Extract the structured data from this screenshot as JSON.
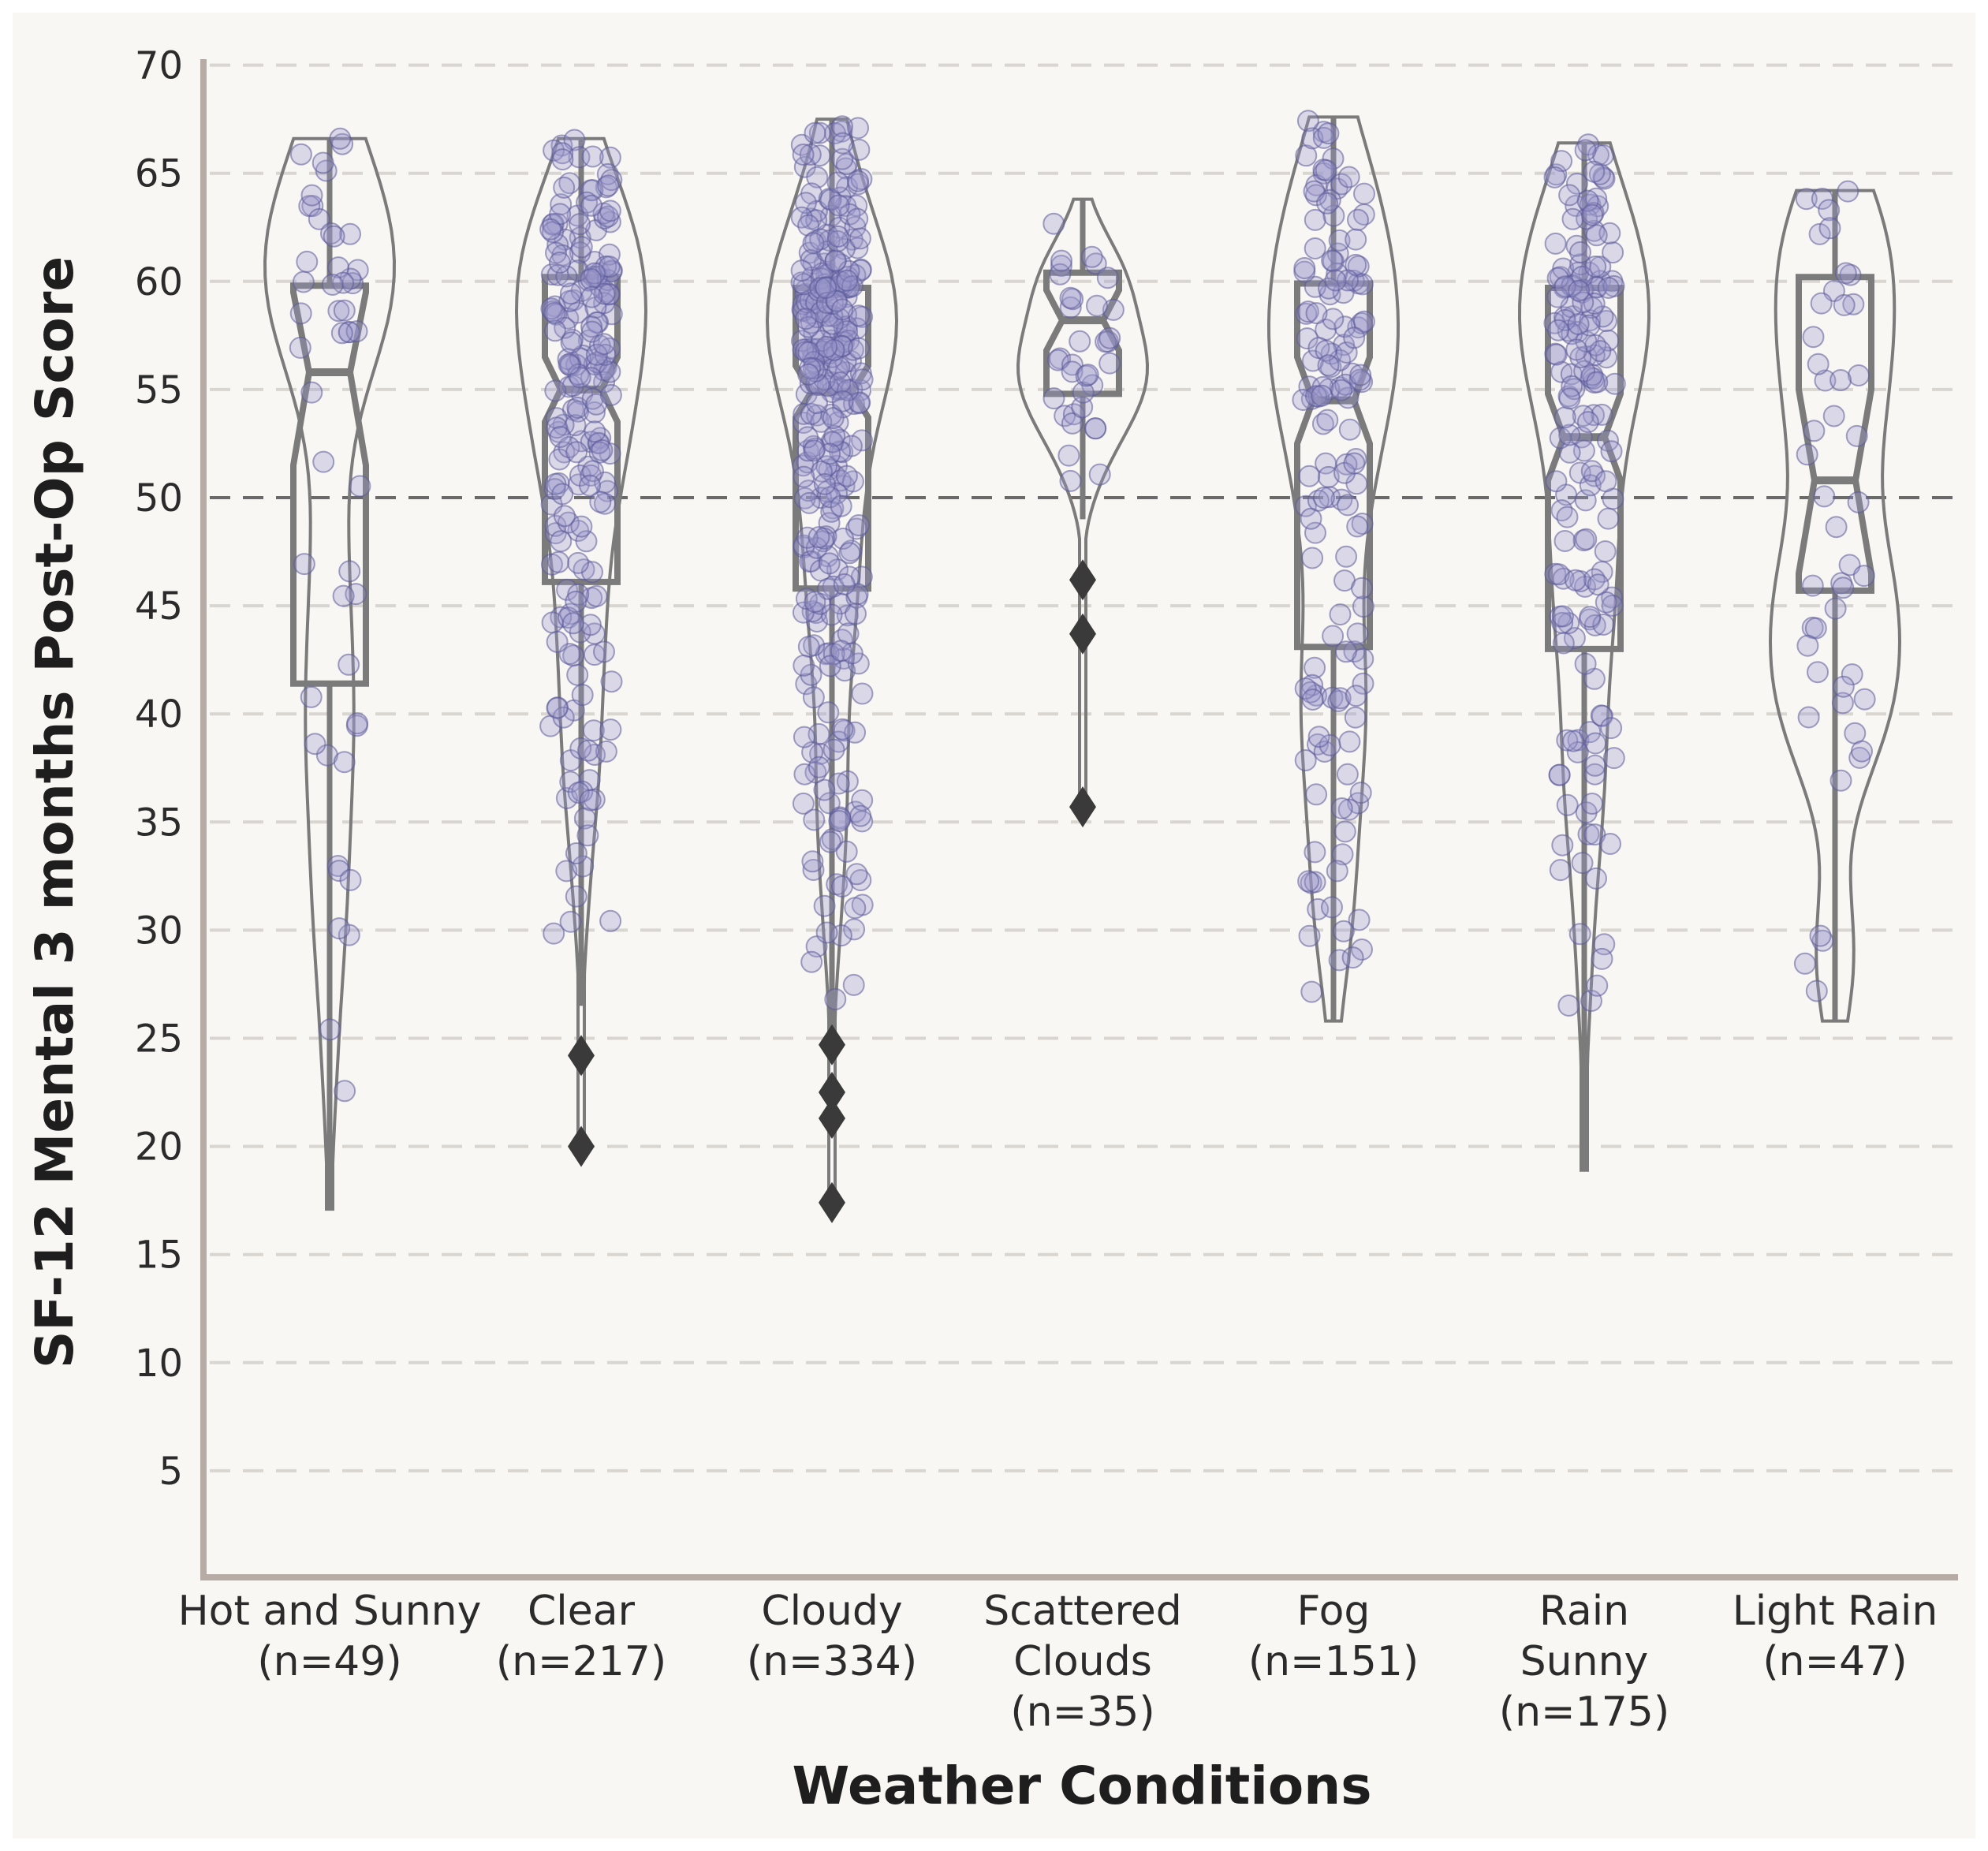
{
  "colors": {
    "background": "#f9f7f3",
    "axis": "#b6aba5",
    "grid": "#d9d6d2",
    "reference_line": "#6a6a6a",
    "box": "#7b7b7b",
    "point_fill": "#9a97cc",
    "point_stroke": "#5b5a99",
    "outlier": "#3a3a3a"
  },
  "chart_data": {
    "type": "violin-box-strip",
    "title": "",
    "xlabel": "Weather Conditions",
    "ylabel": "SF-12 Mental 3 months Post-Op Score",
    "ylim": [
      0,
      70
    ],
    "yticks": [
      5,
      10,
      15,
      20,
      25,
      30,
      35,
      40,
      45,
      50,
      55,
      60,
      65,
      70
    ],
    "grid": "horizontal dashed",
    "reference_line_y": 50,
    "categories": [
      {
        "label": [
          "Hot and Sunny",
          "(n=49)"
        ],
        "n": 49,
        "median": 55.8,
        "q1": 41.4,
        "q3": 59.8,
        "notch_low": 51.5,
        "notch_high": 59.5,
        "whisker_low": 17.1,
        "whisker_high": 66.6,
        "violin_min": 17.1,
        "violin_max": 66.6,
        "outliers": [],
        "seed": 11
      },
      {
        "label": [
          "Clear",
          "(n=217)"
        ],
        "n": 217,
        "median": 55.0,
        "q1": 46.1,
        "q3": 60.2,
        "notch_low": 53.5,
        "notch_high": 56.5,
        "whisker_low": 26.5,
        "whisker_high": 66.6,
        "violin_min": 20.0,
        "violin_max": 66.6,
        "outliers": [
          24.2,
          20.0
        ],
        "seed": 23
      },
      {
        "label": [
          "Cloudy",
          "(n=334)"
        ],
        "n": 334,
        "median": 54.9,
        "q1": 45.8,
        "q3": 59.7,
        "notch_low": 53.7,
        "notch_high": 56.1,
        "whisker_low": 25.4,
        "whisker_high": 67.5,
        "violin_min": 17.3,
        "violin_max": 67.5,
        "outliers": [
          24.7,
          22.5,
          21.3,
          17.4
        ],
        "seed": 37
      },
      {
        "label": [
          "Scattered",
          "Clouds",
          "(n=35)"
        ],
        "n": 35,
        "median": 58.2,
        "q1": 54.8,
        "q3": 60.4,
        "notch_low": 56.8,
        "notch_high": 59.6,
        "whisker_low": 49.0,
        "whisker_high": 63.8,
        "violin_min": 35.6,
        "violin_max": 63.8,
        "outliers": [
          46.2,
          43.7,
          35.7
        ],
        "seed": 41
      },
      {
        "label": [
          "Fog",
          "(n=151)"
        ],
        "n": 151,
        "median": 54.5,
        "q1": 43.1,
        "q3": 59.9,
        "notch_low": 52.5,
        "notch_high": 56.5,
        "whisker_low": 25.8,
        "whisker_high": 67.6,
        "violin_min": 25.8,
        "violin_max": 67.6,
        "outliers": [],
        "seed": 53
      },
      {
        "label": [
          "Rain",
          "Sunny",
          "(n=175)"
        ],
        "n": 175,
        "median": 52.8,
        "q1": 43.0,
        "q3": 59.7,
        "notch_low": 50.8,
        "notch_high": 54.8,
        "whisker_low": 18.9,
        "whisker_high": 66.4,
        "violin_min": 18.9,
        "violin_max": 66.4,
        "outliers": [],
        "seed": 67
      },
      {
        "label": [
          "Light Rain",
          "(n=47)"
        ],
        "n": 47,
        "median": 50.8,
        "q1": 45.7,
        "q3": 60.2,
        "notch_low": 46.5,
        "notch_high": 55.0,
        "whisker_low": 25.8,
        "whisker_high": 64.2,
        "violin_min": 25.8,
        "violin_max": 64.2,
        "outliers": [],
        "seed": 79
      }
    ]
  }
}
